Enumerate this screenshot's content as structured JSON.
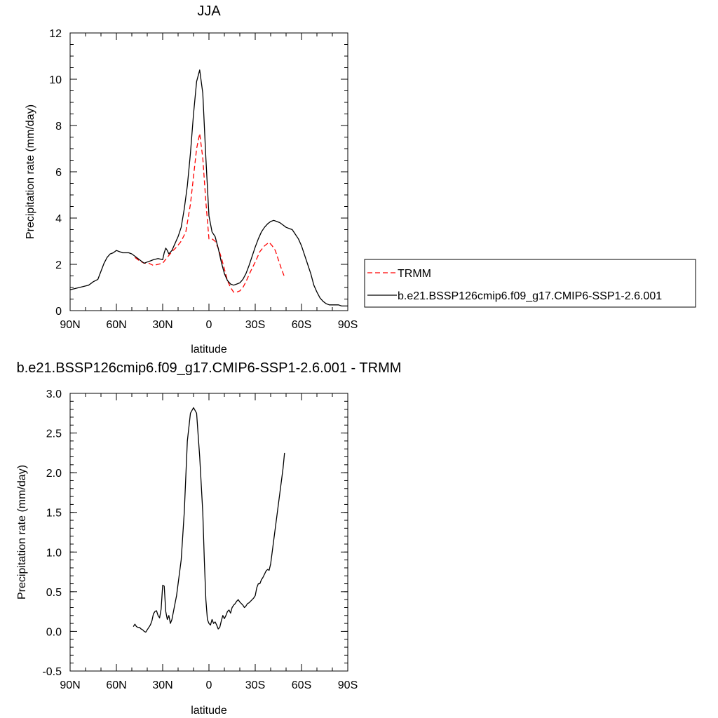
{
  "chart_data": [
    {
      "type": "line",
      "title": "JJA",
      "xlabel": "latitude",
      "ylabel": "Precipitation rate (mm/day)",
      "xlim": [
        -90,
        90
      ],
      "ylim": [
        0,
        12
      ],
      "x_tick_values": [
        -90,
        -60,
        -30,
        0,
        30,
        60,
        90
      ],
      "x_tick_labels": [
        "90N",
        "60N",
        "30N",
        "0",
        "30S",
        "60S",
        "90S"
      ],
      "y_tick_values": [
        0,
        2,
        4,
        6,
        8,
        10,
        12
      ],
      "y_tick_labels": [
        "0",
        "2",
        "4",
        "6",
        "8",
        "10",
        "12"
      ],
      "grid": false,
      "legend_position": "right",
      "series": [
        {
          "name": "TRMM",
          "color": "#ff0000",
          "dash": "dashed",
          "x": [
            -48,
            -45,
            -42,
            -39,
            -36,
            -33,
            -30,
            -27,
            -24,
            -21,
            -18,
            -15,
            -12,
            -10,
            -8,
            -6,
            -4,
            -2,
            0,
            2,
            4,
            6,
            8,
            10,
            12,
            14,
            16,
            18,
            20,
            22,
            24,
            27,
            30,
            33,
            36,
            39,
            41,
            43,
            45,
            47,
            49
          ],
          "y": [
            2.3,
            2.15,
            2.05,
            2.05,
            1.95,
            2.0,
            2.05,
            2.3,
            2.55,
            2.75,
            3.0,
            3.4,
            4.6,
            5.8,
            7.0,
            7.65,
            6.6,
            4.7,
            3.1,
            3.1,
            3.0,
            2.7,
            2.3,
            1.8,
            1.3,
            1.0,
            0.8,
            0.8,
            0.85,
            1.0,
            1.25,
            1.7,
            2.1,
            2.55,
            2.8,
            2.95,
            2.8,
            2.6,
            2.2,
            1.8,
            1.45
          ]
        },
        {
          "name": "b.e21.BSSP126cmip6.f09_g17.CMIP6-SSP1-2.6.001",
          "color": "#000000",
          "dash": "solid",
          "x": [
            -90,
            -87,
            -84,
            -81,
            -78,
            -75,
            -72,
            -70,
            -68,
            -66,
            -64,
            -62,
            -60,
            -58,
            -56,
            -54,
            -52,
            -50,
            -48,
            -46,
            -44,
            -42,
            -40,
            -38,
            -36,
            -33,
            -30,
            -29,
            -28,
            -27,
            -26,
            -24,
            -22,
            -20,
            -18,
            -16,
            -14,
            -12,
            -10,
            -8,
            -6,
            -4,
            -2,
            0,
            2,
            4,
            6,
            8,
            10,
            12,
            14,
            16,
            18,
            20,
            22,
            24,
            26,
            28,
            30,
            32,
            34,
            36,
            38,
            40,
            42,
            44,
            46,
            48,
            50,
            52,
            54,
            56,
            58,
            60,
            62,
            64,
            66,
            68,
            70,
            72,
            74,
            76,
            78,
            80,
            82,
            84,
            86,
            88,
            90
          ],
          "y": [
            0.9,
            0.95,
            1.0,
            1.05,
            1.1,
            1.25,
            1.35,
            1.7,
            2.05,
            2.3,
            2.45,
            2.5,
            2.6,
            2.55,
            2.5,
            2.5,
            2.5,
            2.45,
            2.35,
            2.25,
            2.15,
            2.05,
            2.1,
            2.15,
            2.2,
            2.25,
            2.2,
            2.5,
            2.7,
            2.6,
            2.45,
            2.6,
            2.9,
            3.2,
            3.6,
            4.4,
            5.4,
            6.8,
            8.5,
            9.9,
            10.4,
            9.4,
            6.6,
            4.1,
            3.4,
            3.2,
            2.7,
            2.1,
            1.6,
            1.3,
            1.15,
            1.1,
            1.15,
            1.2,
            1.35,
            1.6,
            1.95,
            2.35,
            2.75,
            3.1,
            3.4,
            3.6,
            3.75,
            3.85,
            3.9,
            3.85,
            3.8,
            3.7,
            3.6,
            3.55,
            3.5,
            3.3,
            3.1,
            2.8,
            2.4,
            2.0,
            1.6,
            1.1,
            0.8,
            0.55,
            0.4,
            0.3,
            0.25,
            0.25,
            0.25,
            0.25,
            0.2,
            0.2,
            0.2
          ]
        }
      ]
    },
    {
      "type": "line",
      "title": "b.e21.BSSP126cmip6.f09_g17.CMIP6-SSP1-2.6.001 - TRMM",
      "xlabel": "latitude",
      "ylabel": "Precipitation rate (mm/day)",
      "xlim": [
        -90,
        90
      ],
      "ylim": [
        -0.5,
        3.0
      ],
      "x_tick_values": [
        -90,
        -60,
        -30,
        0,
        30,
        60,
        90
      ],
      "x_tick_labels": [
        "90N",
        "60N",
        "30N",
        "0",
        "30S",
        "60S",
        "90S"
      ],
      "y_tick_values": [
        -0.5,
        0.0,
        0.5,
        1.0,
        1.5,
        2.0,
        2.5,
        3.0
      ],
      "y_tick_labels": [
        "-0.5",
        "0.0",
        "0.5",
        "1.0",
        "1.5",
        "2.0",
        "2.5",
        "3.0"
      ],
      "grid": false,
      "series": [
        {
          "color": "#000000",
          "dash": "solid",
          "x": [
            -49,
            -48,
            -47,
            -46,
            -45,
            -44,
            -43,
            -42,
            -41,
            -40,
            -39,
            -38,
            -37,
            -36,
            -35,
            -34,
            -33,
            -32,
            -31,
            -30,
            -29,
            -28,
            -27,
            -26,
            -25,
            -24,
            -23,
            -22,
            -21,
            -20,
            -18,
            -16,
            -14,
            -12,
            -10,
            -8,
            -6,
            -4,
            -3,
            -2,
            -1,
            0,
            1,
            2,
            3,
            4,
            5,
            6,
            7,
            8,
            9,
            10,
            11,
            12,
            13,
            14,
            15,
            16,
            17,
            18,
            19,
            20,
            21,
            22,
            23,
            24,
            25,
            26,
            27,
            28,
            29,
            30,
            31,
            32,
            33,
            34,
            35,
            36,
            37,
            38,
            39,
            40,
            41,
            42,
            43,
            44,
            45,
            46,
            47,
            48,
            49
          ],
          "y": [
            0.06,
            0.09,
            0.06,
            0.05,
            0.05,
            0.03,
            0.02,
            0.0,
            -0.01,
            0.02,
            0.05,
            0.08,
            0.13,
            0.22,
            0.25,
            0.26,
            0.2,
            0.17,
            0.28,
            0.58,
            0.57,
            0.25,
            0.15,
            0.2,
            0.1,
            0.15,
            0.25,
            0.35,
            0.45,
            0.6,
            0.9,
            1.5,
            2.4,
            2.75,
            2.82,
            2.75,
            2.2,
            1.5,
            0.9,
            0.4,
            0.15,
            0.1,
            0.08,
            0.15,
            0.1,
            0.12,
            0.08,
            0.03,
            0.05,
            0.13,
            0.2,
            0.16,
            0.2,
            0.25,
            0.27,
            0.23,
            0.3,
            0.33,
            0.35,
            0.38,
            0.4,
            0.37,
            0.35,
            0.33,
            0.3,
            0.32,
            0.35,
            0.36,
            0.38,
            0.4,
            0.42,
            0.45,
            0.55,
            0.6,
            0.6,
            0.65,
            0.68,
            0.72,
            0.76,
            0.78,
            0.77,
            0.85,
            1.0,
            1.15,
            1.3,
            1.45,
            1.6,
            1.75,
            1.9,
            2.05,
            2.25
          ]
        }
      ]
    }
  ]
}
